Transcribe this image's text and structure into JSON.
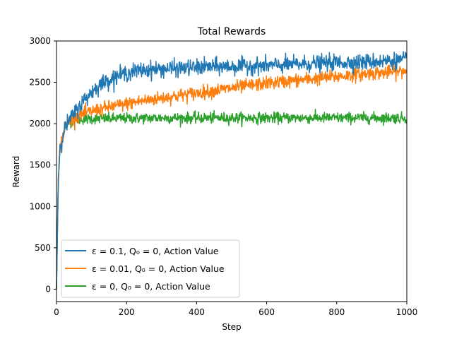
{
  "chart_data": {
    "type": "line",
    "title": "Total Rewards",
    "xlabel": "Step",
    "ylabel": "Reward",
    "xlim": [
      0,
      1000
    ],
    "ylim": [
      -150,
      3000
    ],
    "xticks": [
      0,
      200,
      400,
      600,
      800,
      1000
    ],
    "yticks": [
      0,
      500,
      1000,
      1500,
      2000,
      2500,
      3000
    ],
    "grid": false,
    "legend_position": "lower-left",
    "series": [
      {
        "name": "ε = 0.1, Q₀ = 0, Action Value",
        "color": "#1f77b4",
        "x": [
          0,
          5,
          10,
          20,
          30,
          40,
          50,
          60,
          70,
          80,
          100,
          120,
          140,
          160,
          180,
          200,
          220,
          250,
          300,
          350,
          400,
          450,
          500,
          550,
          600,
          650,
          700,
          750,
          800,
          850,
          900,
          950,
          1000
        ],
        "y": [
          0,
          1300,
          1700,
          1900,
          2000,
          2060,
          2120,
          2180,
          2240,
          2290,
          2380,
          2460,
          2510,
          2550,
          2590,
          2610,
          2630,
          2650,
          2660,
          2670,
          2680,
          2690,
          2690,
          2700,
          2700,
          2710,
          2720,
          2730,
          2740,
          2740,
          2750,
          2760,
          2770
        ]
      },
      {
        "name": "ε = 0.01, Q₀ = 0, Action Value",
        "color": "#ff7f0e",
        "x": [
          0,
          5,
          10,
          20,
          30,
          40,
          50,
          70,
          100,
          150,
          200,
          250,
          300,
          350,
          400,
          450,
          500,
          550,
          600,
          650,
          700,
          750,
          800,
          850,
          900,
          950,
          1000
        ],
        "y": [
          0,
          1300,
          1700,
          1900,
          2000,
          2050,
          2080,
          2110,
          2150,
          2200,
          2240,
          2280,
          2310,
          2340,
          2370,
          2400,
          2430,
          2460,
          2490,
          2510,
          2530,
          2550,
          2570,
          2590,
          2610,
          2620,
          2640
        ]
      },
      {
        "name": "ε = 0, Q₀ = 0, Action Value",
        "color": "#2ca02c",
        "x": [
          0,
          5,
          10,
          20,
          30,
          40,
          50,
          100,
          200,
          300,
          400,
          500,
          600,
          700,
          800,
          900,
          1000
        ],
        "y": [
          0,
          1300,
          1700,
          1900,
          1990,
          2030,
          2050,
          2060,
          2065,
          2070,
          2070,
          2070,
          2070,
          2070,
          2070,
          2070,
          2070
        ]
      }
    ]
  }
}
